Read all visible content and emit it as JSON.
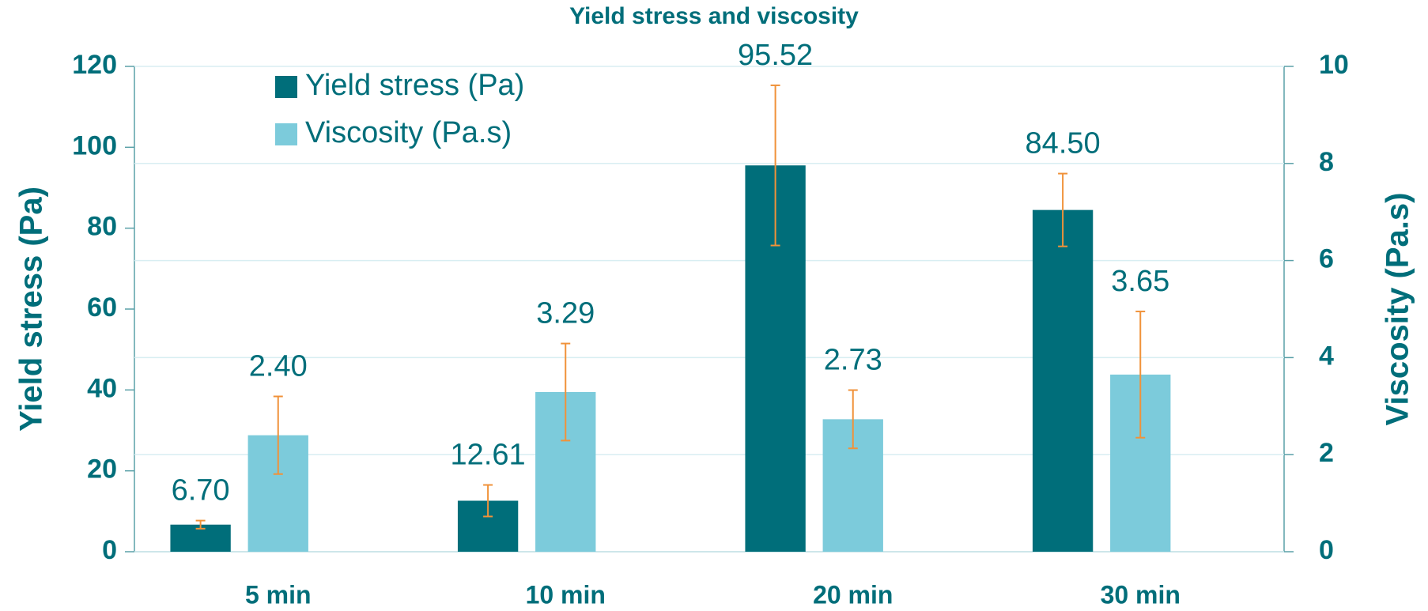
{
  "chart_data": {
    "type": "bar",
    "title": "Yield stress and viscosity",
    "categories": [
      "5 min",
      "10 min",
      "20 min",
      "30 min"
    ],
    "y_label": "Yield stress (Pa)",
    "y2_label": "Viscosity (Pa.s)",
    "series": [
      {
        "name": "Yield stress (Pa)",
        "color": "#006e7a",
        "values": [
          6.7,
          12.61,
          95.52,
          84.5
        ],
        "value_labels": [
          "6.70",
          "12.61",
          "95.52",
          "84.50"
        ],
        "errors": [
          1.0,
          3.9,
          19.8,
          9.0
        ]
      },
      {
        "name": "Viscosity (Pa.s)",
        "color": "#7ccbdb",
        "axis": "y2",
        "values": [
          2.4,
          3.29,
          2.73,
          3.65
        ],
        "value_labels": [
          "2.40",
          "3.29",
          "2.73",
          "3.65"
        ],
        "errors": [
          0.8,
          1.0,
          0.6,
          1.3
        ]
      }
    ],
    "error_color": "#f0923a",
    "ylim": [
      0,
      120
    ],
    "yticks": [
      0,
      20,
      40,
      60,
      80,
      100,
      120
    ],
    "y2lim": [
      0,
      10
    ],
    "y2ticks": [
      0,
      2,
      4,
      6,
      8,
      10
    ],
    "grid": true,
    "legend": "upper left"
  }
}
